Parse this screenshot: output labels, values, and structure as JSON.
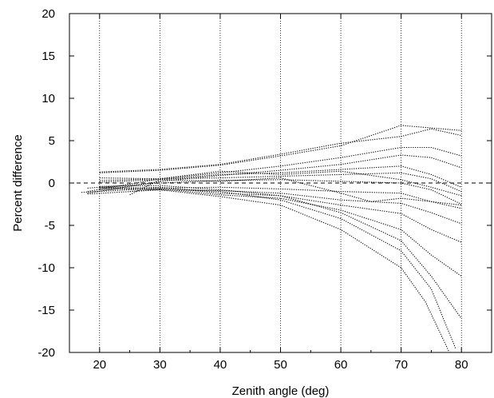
{
  "chart_data": {
    "type": "line",
    "title": "",
    "xlabel": "Zenith angle (deg)",
    "ylabel": "Percent difference",
    "xlim": [
      15,
      85
    ],
    "ylim": [
      -20,
      20
    ],
    "x_ticks": [
      20,
      30,
      40,
      50,
      60,
      70,
      80
    ],
    "y_ticks": [
      20,
      15,
      10,
      5,
      0,
      -5,
      -10,
      -15,
      -20
    ],
    "x_tick_labels": [
      "20",
      "30",
      "40",
      "50",
      "60",
      "70",
      "80"
    ],
    "y_tick_labels": [
      "20",
      "15",
      "10",
      "5",
      "0",
      "-5",
      "-10",
      "-15",
      "-20"
    ],
    "grid": "vertical dotted lines at 20, 30, 40, 50, 60, 70, 80",
    "reference_line": {
      "y": 0,
      "style": "dashed"
    },
    "line_style": "dotted",
    "color": "#000000",
    "series": [
      {
        "x": [
          20,
          30,
          40,
          50,
          60,
          70,
          75,
          80
        ],
        "values": [
          1.3,
          1.6,
          2.2,
          3.4,
          4.7,
          5.5,
          6.4,
          5.6
        ]
      },
      {
        "x": [
          20,
          30,
          40,
          50,
          60,
          70,
          75,
          80
        ],
        "values": [
          1.2,
          1.5,
          2.1,
          3.2,
          4.4,
          6.8,
          6.5,
          6.2
        ]
      },
      {
        "x": [
          18,
          30,
          40,
          50,
          60,
          70,
          75,
          80
        ],
        "values": [
          -1.0,
          0.5,
          1.2,
          2.0,
          3.0,
          4.2,
          4.2,
          3.2
        ]
      },
      {
        "x": [
          18,
          30,
          40,
          50,
          60,
          70,
          75,
          80
        ],
        "values": [
          -1.2,
          0.2,
          0.9,
          1.5,
          2.2,
          3.3,
          3.0,
          1.8
        ]
      },
      {
        "x": [
          25,
          30,
          40,
          50,
          60,
          70,
          75,
          80
        ],
        "values": [
          -1.4,
          0.4,
          1.0,
          1.2,
          1.6,
          2.0,
          1.0,
          -0.5
        ]
      },
      {
        "x": [
          20,
          30,
          40,
          50,
          60,
          70,
          75,
          80
        ],
        "values": [
          0.3,
          0.5,
          0.6,
          0.8,
          1.0,
          1.2,
          0.5,
          -1.0
        ]
      },
      {
        "x": [
          18,
          30,
          40,
          50,
          60,
          70,
          75,
          80
        ],
        "values": [
          -0.6,
          0.0,
          0.3,
          0.4,
          0.2,
          0.0,
          -0.8,
          -2.5
        ]
      },
      {
        "x": [
          17,
          30,
          40,
          50,
          60,
          70,
          75,
          80
        ],
        "values": [
          -1.1,
          -0.6,
          -0.5,
          -0.7,
          -1.0,
          -1.2,
          -2.2,
          -3.0
        ]
      },
      {
        "x": [
          18,
          30,
          40,
          50,
          60,
          70,
          75,
          80
        ],
        "values": [
          -1.3,
          -0.8,
          -0.9,
          -1.2,
          -2.0,
          -2.4,
          -3.5,
          -4.8
        ]
      },
      {
        "x": [
          20,
          30,
          40,
          50,
          60,
          70,
          75,
          80
        ],
        "values": [
          -0.8,
          -0.5,
          -1.2,
          -1.5,
          -2.6,
          -3.6,
          -5.5,
          -7.0
        ]
      },
      {
        "x": [
          25,
          30,
          40,
          50,
          60,
          70,
          75,
          80
        ],
        "values": [
          -1.0,
          -0.7,
          -1.4,
          -1.8,
          -3.2,
          -5.5,
          -8.5,
          -11.0
        ]
      },
      {
        "x": [
          20,
          30,
          40,
          50,
          60,
          70,
          75,
          80
        ],
        "values": [
          -0.4,
          -0.3,
          -0.8,
          -1.5,
          -3.5,
          -6.8,
          -11.0,
          -16.0
        ]
      },
      {
        "x": [
          20,
          30,
          40,
          50,
          60,
          70,
          75,
          79
        ],
        "values": [
          -0.5,
          -0.6,
          -1.0,
          -2.0,
          -4.2,
          -8.0,
          -12.5,
          -19.5
        ]
      },
      {
        "x": [
          20,
          30,
          40,
          50,
          60,
          70,
          74,
          78
        ],
        "values": [
          -0.6,
          -0.8,
          -1.6,
          -2.6,
          -5.5,
          -10.0,
          -14.0,
          -20.0
        ]
      },
      {
        "x": [
          20,
          30,
          40,
          50,
          60,
          65,
          70,
          75,
          80
        ],
        "values": [
          0.1,
          0.4,
          0.2,
          0.6,
          -1.2,
          -2.2,
          -1.8,
          -2.2,
          -2.6
        ]
      },
      {
        "x": [
          20,
          30,
          40,
          50,
          60,
          70,
          75,
          80
        ],
        "values": [
          0.6,
          0.5,
          1.4,
          1.0,
          1.4,
          0.4,
          -0.5,
          -1.5
        ]
      }
    ]
  }
}
